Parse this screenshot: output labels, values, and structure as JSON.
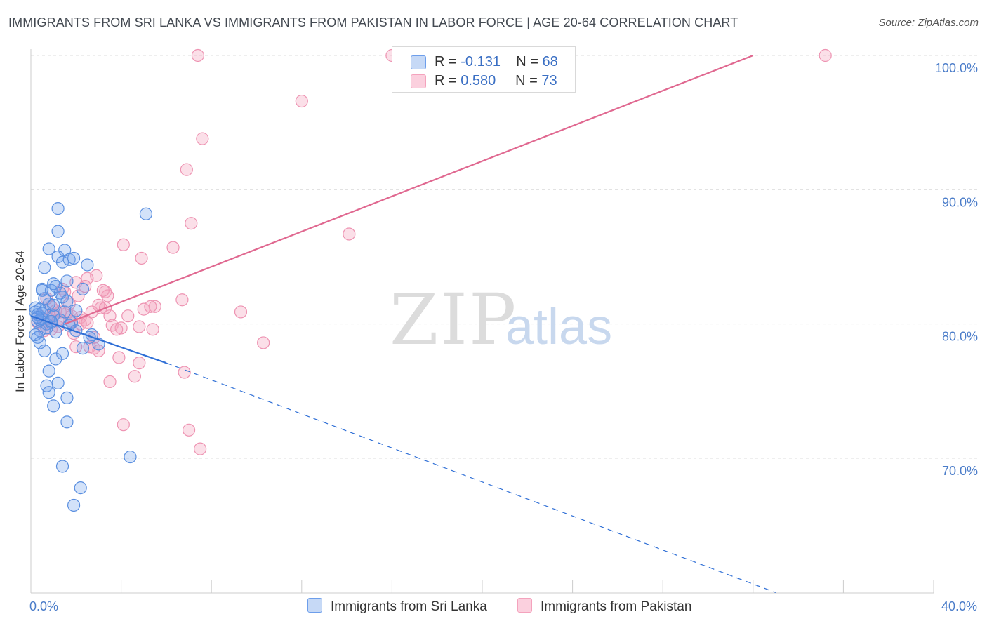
{
  "title": "IMMIGRANTS FROM SRI LANKA VS IMMIGRANTS FROM PAKISTAN IN LABOR FORCE | AGE 20-64 CORRELATION CHART",
  "source": "Source: ZipAtlas.com",
  "watermark": {
    "zip": "ZIP",
    "atlas": "atlas"
  },
  "legend": {
    "series1": {
      "r_label": "R =",
      "r_value": "-0.131",
      "n_label": "N =",
      "n_value": "68"
    },
    "series2": {
      "r_label": "R =",
      "r_value": "0.580",
      "n_label": "N =",
      "n_value": "73"
    }
  },
  "chart_data": {
    "type": "scatter",
    "title": "IMMIGRANTS FROM SRI LANKA VS IMMIGRANTS FROM PAKISTAN IN LABOR FORCE | AGE 20-64 CORRELATION CHART",
    "xlabel": "",
    "ylabel": "In Labor Force | Age 20-64",
    "xlim": [
      0,
      40
    ],
    "ylim": [
      60,
      101
    ],
    "x_tick_labels": [
      "0.0%",
      "40.0%"
    ],
    "y_ticks": [
      70,
      80,
      90,
      100
    ],
    "y_tick_labels": [
      "70.0%",
      "80.0%",
      "90.0%",
      "100.0%"
    ],
    "colors": {
      "sri_lanka": "#6d9eeb",
      "sri_lanka_line": "#2f6fd6",
      "pakistan": "#f4a3bd",
      "pakistan_line": "#e06890"
    },
    "series": [
      {
        "name": "Immigrants from Sri Lanka",
        "trend": {
          "x0": 0,
          "y0": 80.6,
          "x1": 6,
          "y1": 77.1,
          "dashed_to_x": 33.0,
          "dashed_to_y": 60.0
        },
        "points": [
          [
            0.2,
            80.9
          ],
          [
            0.3,
            80.2
          ],
          [
            0.4,
            79.5
          ],
          [
            0.2,
            81.2
          ],
          [
            0.5,
            80.4
          ],
          [
            0.3,
            79.0
          ],
          [
            0.6,
            81.0
          ],
          [
            0.4,
            78.6
          ],
          [
            0.7,
            80.0
          ],
          [
            0.5,
            82.6
          ],
          [
            0.8,
            81.5
          ],
          [
            0.3,
            80.7
          ],
          [
            0.9,
            82.5
          ],
          [
            1.0,
            83.0
          ],
          [
            0.6,
            84.2
          ],
          [
            0.8,
            85.6
          ],
          [
            1.2,
            85.0
          ],
          [
            1.4,
            84.6
          ],
          [
            1.5,
            85.5
          ],
          [
            1.7,
            84.8
          ],
          [
            2.5,
            84.4
          ],
          [
            1.9,
            84.9
          ],
          [
            1.2,
            86.9
          ],
          [
            1.2,
            88.6
          ],
          [
            5.1,
            88.2
          ],
          [
            1.1,
            82.8
          ],
          [
            1.4,
            82.0
          ],
          [
            1.6,
            81.7
          ],
          [
            2.3,
            82.6
          ],
          [
            1.0,
            80.6
          ],
          [
            1.3,
            80.3
          ],
          [
            1.8,
            80.1
          ],
          [
            2.0,
            79.5
          ],
          [
            2.7,
            79.2
          ],
          [
            3.0,
            78.5
          ],
          [
            1.1,
            79.4
          ],
          [
            0.6,
            78.0
          ],
          [
            1.4,
            77.8
          ],
          [
            1.1,
            77.4
          ],
          [
            0.8,
            76.5
          ],
          [
            1.2,
            75.6
          ],
          [
            0.7,
            75.4
          ],
          [
            0.8,
            74.9
          ],
          [
            1.6,
            74.5
          ],
          [
            1.0,
            73.9
          ],
          [
            1.6,
            72.7
          ],
          [
            1.4,
            69.4
          ],
          [
            4.4,
            70.1
          ],
          [
            2.2,
            67.8
          ],
          [
            1.9,
            66.5
          ],
          [
            0.4,
            81.1
          ],
          [
            0.5,
            80.8
          ],
          [
            0.9,
            80.1
          ],
          [
            1.6,
            83.2
          ],
          [
            0.7,
            79.7
          ],
          [
            2.0,
            81.0
          ],
          [
            1.5,
            80.9
          ],
          [
            0.2,
            79.2
          ],
          [
            2.3,
            78.2
          ],
          [
            0.9,
            80.2
          ],
          [
            0.5,
            82.5
          ],
          [
            1.3,
            82.3
          ],
          [
            0.6,
            81.9
          ],
          [
            0.4,
            80.3
          ],
          [
            1.0,
            81.4
          ],
          [
            0.3,
            80.5
          ],
          [
            1.7,
            79.9
          ],
          [
            2.6,
            79.0
          ]
        ]
      },
      {
        "name": "Immigrants from Pakistan",
        "trend": {
          "x0": 1.5,
          "y0": 80.0,
          "x1": 32.0,
          "y1": 100.0
        },
        "points": [
          [
            7.4,
            100.0
          ],
          [
            16.0,
            100.0
          ],
          [
            35.2,
            100.0
          ],
          [
            12.0,
            96.6
          ],
          [
            7.6,
            93.8
          ],
          [
            6.9,
            91.5
          ],
          [
            14.1,
            86.7
          ],
          [
            7.1,
            87.5
          ],
          [
            4.1,
            85.9
          ],
          [
            6.3,
            85.7
          ],
          [
            4.9,
            84.9
          ],
          [
            2.9,
            83.6
          ],
          [
            2.5,
            83.4
          ],
          [
            2.0,
            83.1
          ],
          [
            1.4,
            82.6
          ],
          [
            3.3,
            82.4
          ],
          [
            3.4,
            82.1
          ],
          [
            2.1,
            82.1
          ],
          [
            6.7,
            81.8
          ],
          [
            5.5,
            81.3
          ],
          [
            5.0,
            81.1
          ],
          [
            3.1,
            81.2
          ],
          [
            2.7,
            80.9
          ],
          [
            0.9,
            81.3
          ],
          [
            1.1,
            81.0
          ],
          [
            1.6,
            80.8
          ],
          [
            3.5,
            80.6
          ],
          [
            2.2,
            80.5
          ],
          [
            2.4,
            80.3
          ],
          [
            1.8,
            80.2
          ],
          [
            9.3,
            80.9
          ],
          [
            3.6,
            79.9
          ],
          [
            4.8,
            79.8
          ],
          [
            5.4,
            79.6
          ],
          [
            1.2,
            79.8
          ],
          [
            0.6,
            79.5
          ],
          [
            1.9,
            79.3
          ],
          [
            10.3,
            78.6
          ],
          [
            2.6,
            78.3
          ],
          [
            2.8,
            78.2
          ],
          [
            3.0,
            78.0
          ],
          [
            4.8,
            77.1
          ],
          [
            3.9,
            77.5
          ],
          [
            6.8,
            76.4
          ],
          [
            4.6,
            76.1
          ],
          [
            3.5,
            75.7
          ],
          [
            4.1,
            72.5
          ],
          [
            7.0,
            72.1
          ],
          [
            7.5,
            70.7
          ],
          [
            0.4,
            80.6
          ],
          [
            0.8,
            80.4
          ],
          [
            1.3,
            80.9
          ],
          [
            0.5,
            79.9
          ],
          [
            2.2,
            80.0
          ],
          [
            3.2,
            82.5
          ],
          [
            4.0,
            79.7
          ],
          [
            1.7,
            81.5
          ],
          [
            0.3,
            80.1
          ],
          [
            1.0,
            80.7
          ],
          [
            2.0,
            78.3
          ],
          [
            3.8,
            79.6
          ],
          [
            2.5,
            80.1
          ],
          [
            0.7,
            81.9
          ],
          [
            1.5,
            82.4
          ],
          [
            3.0,
            81.4
          ],
          [
            1.2,
            80.3
          ],
          [
            2.8,
            79.0
          ],
          [
            0.9,
            79.6
          ],
          [
            4.3,
            80.6
          ],
          [
            3.3,
            81.2
          ],
          [
            2.4,
            82.8
          ],
          [
            5.3,
            81.3
          ],
          [
            1.8,
            80.6
          ]
        ]
      }
    ]
  },
  "bottom_legend": [
    {
      "label": "Immigrants from Sri Lanka"
    },
    {
      "label": "Immigrants from Pakistan"
    }
  ]
}
